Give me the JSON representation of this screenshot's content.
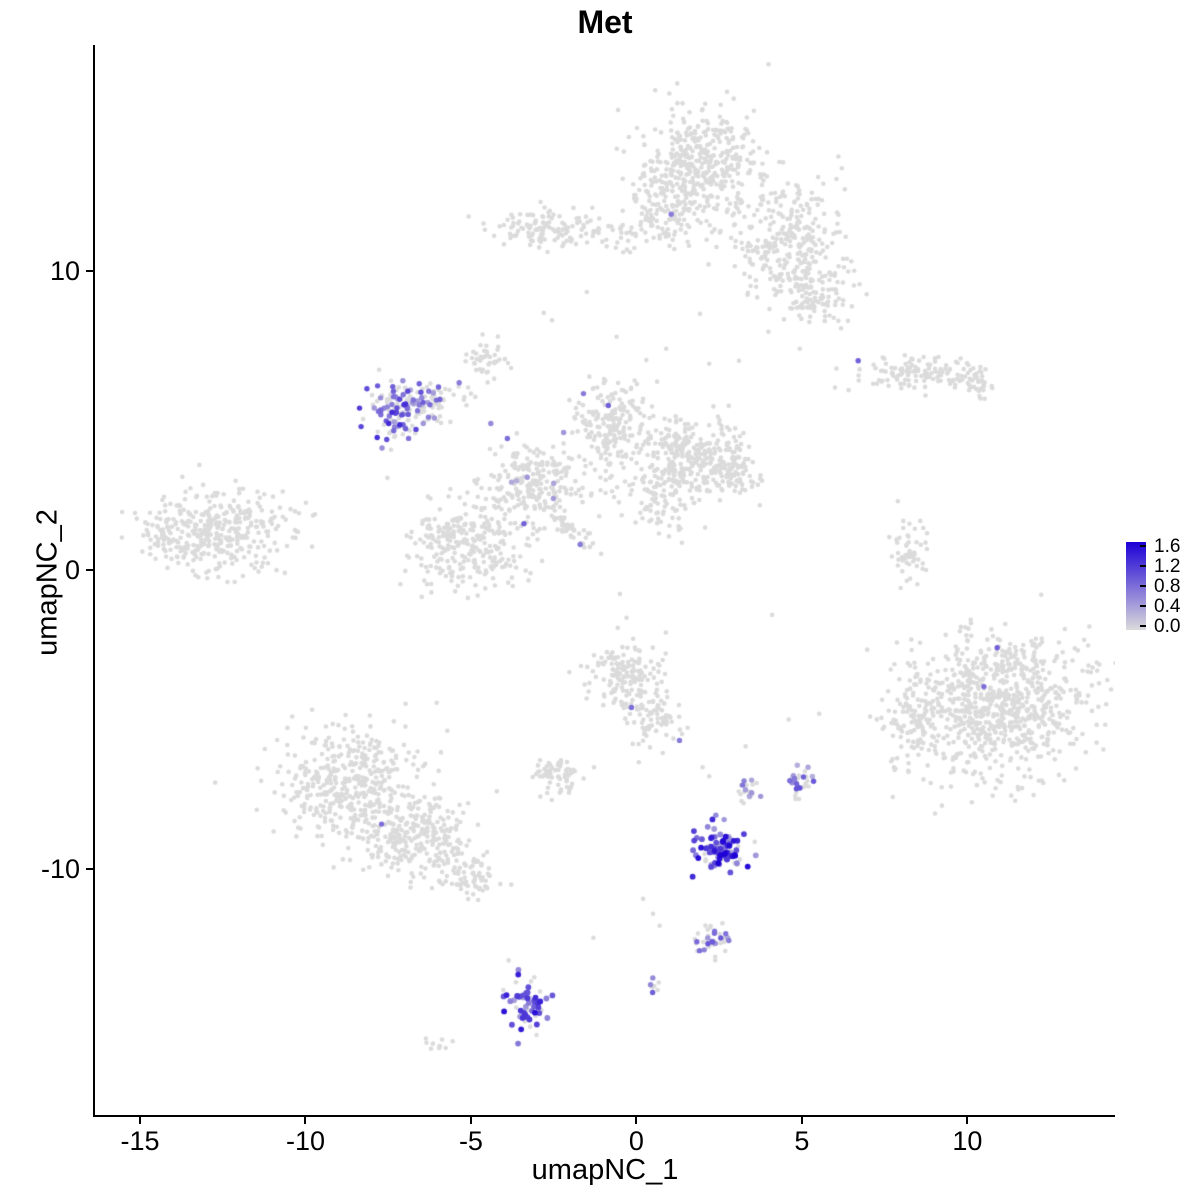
{
  "chart_data": {
    "type": "scatter",
    "title": "Met",
    "xlabel": "umapNC_1",
    "ylabel": "umapNC_2",
    "xlim": [
      -16.36,
      14.46
    ],
    "ylim": [
      -18.23,
      17.56
    ],
    "x_ticks": {
      "values": [
        -15,
        -10,
        -5,
        0,
        5,
        10
      ],
      "labels": [
        "-15",
        "-10",
        "-5",
        "0",
        "5",
        "10"
      ]
    },
    "y_ticks": {
      "values": [
        10,
        0,
        -10
      ],
      "labels": [
        "10",
        "0",
        "-10"
      ]
    },
    "grid": false,
    "background": "#FFFFFF",
    "point_radius": 2.3,
    "expressed_point_radius": 2.7,
    "seed": 20240601,
    "colors": {
      "low": "#DBDBDB",
      "high": "#1C00D6",
      "axis": "#000000",
      "text": "#000000"
    },
    "legend": {
      "position": "right",
      "vmax": 1.6,
      "tick_values": [
        1.6,
        1.2,
        0.8,
        0.4,
        0.0
      ],
      "tick_labels": [
        "1.6",
        "1.2",
        "0.8",
        "0.4",
        "0.0"
      ]
    },
    "clusters": [
      {
        "name": "top-main",
        "cx": 2.0,
        "cy": 13.5,
        "sx": 0.95,
        "sy": 1.0,
        "n": 420
      },
      {
        "name": "top-right",
        "cx": 4.6,
        "cy": 11.0,
        "sx": 0.85,
        "sy": 1.1,
        "n": 300
      },
      {
        "name": "top-right-low",
        "cx": 5.5,
        "cy": 9.2,
        "sx": 0.55,
        "sy": 0.5,
        "n": 90
      },
      {
        "name": "top-left-arm",
        "cx": -1.6,
        "cy": 11.3,
        "sx": 1.35,
        "sy": 0.28,
        "n": 120
      },
      {
        "name": "top-left-blob",
        "cx": -3.0,
        "cy": 11.6,
        "sx": 0.45,
        "sy": 0.3,
        "n": 50
      },
      {
        "name": "top-mid-bridge",
        "cx": 0.9,
        "cy": 12.0,
        "sx": 0.5,
        "sy": 0.7,
        "n": 80
      },
      {
        "name": "small-upper-left",
        "cx": -4.5,
        "cy": 7.1,
        "sx": 0.33,
        "sy": 0.26,
        "n": 40
      },
      {
        "name": "met-left",
        "cx": -7.3,
        "cy": 5.3,
        "sx": 0.5,
        "sy": 0.55,
        "n": 115,
        "expr_frac": 0.55,
        "vmin": 0.4,
        "vmax": 1.3
      },
      {
        "name": "met-left-east",
        "cx": -6.2,
        "cy": 5.7,
        "sx": 0.5,
        "sy": 0.35,
        "n": 80,
        "expr_frac": 0.18,
        "vmin": 0.3,
        "vmax": 0.9
      },
      {
        "name": "central-n1",
        "cx": -0.7,
        "cy": 4.9,
        "sx": 0.55,
        "sy": 0.75,
        "n": 190
      },
      {
        "name": "central-n2",
        "cx": 1.6,
        "cy": 3.9,
        "sx": 0.8,
        "sy": 0.6,
        "n": 260
      },
      {
        "name": "central-n2b",
        "cx": 2.7,
        "cy": 3.3,
        "sx": 0.45,
        "sy": 0.45,
        "n": 100
      },
      {
        "name": "central-w",
        "cx": -3.1,
        "cy": 2.9,
        "sx": 0.8,
        "sy": 0.7,
        "n": 240,
        "expr_frac": 0.02,
        "vmin": 0.3,
        "vmax": 0.7
      },
      {
        "name": "central-sw",
        "cx": -5.1,
        "cy": 0.9,
        "sx": 0.8,
        "sy": 0.75,
        "n": 290
      },
      {
        "name": "central-mid",
        "cx": 0.6,
        "cy": 2.4,
        "sx": 0.55,
        "sy": 0.55,
        "n": 90
      },
      {
        "name": "central-streak",
        "cx": -1.9,
        "cy": 1.3,
        "sx": 0.6,
        "sy": 0.13,
        "rot": -0.8,
        "n": 50
      },
      {
        "name": "left",
        "cx": -12.5,
        "cy": 1.3,
        "sx": 1.05,
        "sy": 0.75,
        "n": 330
      },
      {
        "name": "left-tip",
        "cx": -14.1,
        "cy": 1.1,
        "sx": 0.45,
        "sy": 0.45,
        "n": 60
      },
      {
        "name": "right-strip",
        "cx": 8.6,
        "cy": 6.6,
        "sx": 0.95,
        "sy": 0.3,
        "n": 130
      },
      {
        "name": "right-strip-e",
        "cx": 10.2,
        "cy": 6.1,
        "sx": 0.35,
        "sy": 0.18,
        "n": 25
      },
      {
        "name": "right-small",
        "cx": 8.2,
        "cy": 0.6,
        "sx": 0.3,
        "sy": 0.55,
        "n": 55
      },
      {
        "name": "right-big",
        "cx": 10.9,
        "cy": -4.4,
        "sx": 1.35,
        "sy": 1.2,
        "n": 820
      },
      {
        "name": "right-big-arm",
        "cx": 8.3,
        "cy": -5.0,
        "sx": 0.45,
        "sy": 0.9,
        "n": 90
      },
      {
        "name": "mid-south",
        "cx": -0.3,
        "cy": -3.6,
        "sx": 0.6,
        "sy": 0.55,
        "n": 150
      },
      {
        "name": "mid-south-arm",
        "cx": 0.6,
        "cy": -4.9,
        "sx": 0.5,
        "sy": 0.5,
        "n": 80
      },
      {
        "name": "small-mid-sw",
        "cx": -2.4,
        "cy": -6.9,
        "sx": 0.4,
        "sy": 0.3,
        "n": 65
      },
      {
        "name": "bottomleft-main",
        "cx": -8.7,
        "cy": -7.1,
        "sx": 1.1,
        "sy": 0.95,
        "n": 430
      },
      {
        "name": "bottomleft-s",
        "cx": -6.6,
        "cy": -9.0,
        "sx": 0.9,
        "sy": 0.75,
        "n": 270
      },
      {
        "name": "bottomleft-tail",
        "cx": -5.0,
        "cy": -10.3,
        "sx": 0.45,
        "sy": 0.35,
        "n": 60
      },
      {
        "name": "met-bottom",
        "cx": 2.5,
        "cy": -9.4,
        "sx": 0.42,
        "sy": 0.38,
        "n": 95,
        "expr_frac": 0.78,
        "vmin": 0.4,
        "vmax": 1.6,
        "r": 2.9
      },
      {
        "name": "small-se1",
        "cx": 3.4,
        "cy": -7.4,
        "sx": 0.18,
        "sy": 0.24,
        "n": 22,
        "expr_frac": 0.35,
        "vmin": 0.3,
        "vmax": 0.9
      },
      {
        "name": "small-se2",
        "cx": 5.0,
        "cy": -7.1,
        "sx": 0.2,
        "sy": 0.28,
        "n": 28,
        "expr_frac": 0.45,
        "vmin": 0.3,
        "vmax": 1.1
      },
      {
        "name": "small-s",
        "cx": 2.3,
        "cy": -12.4,
        "sx": 0.3,
        "sy": 0.26,
        "n": 40,
        "expr_frac": 0.35,
        "vmin": 0.3,
        "vmax": 1.0
      },
      {
        "name": "met-deep-south",
        "cx": -3.3,
        "cy": -14.4,
        "sx": 0.28,
        "sy": 0.5,
        "n": 68,
        "expr_frac": 0.7,
        "vmin": 0.4,
        "vmax": 1.5,
        "r": 2.9
      },
      {
        "name": "tiny-s",
        "cx": 0.55,
        "cy": -13.9,
        "sx": 0.16,
        "sy": 0.16,
        "n": 7,
        "expr_frac": 0.6,
        "vmin": 0.4,
        "vmax": 1.0
      },
      {
        "name": "tiny-sw",
        "cx": -6.0,
        "cy": -15.9,
        "sx": 0.28,
        "sy": 0.12,
        "n": 10
      }
    ],
    "extra_points": {
      "gray": [
        [
          -2.8,
          8.6
        ],
        [
          -2.55,
          8.35
        ],
        [
          -1.5,
          9.3
        ],
        [
          0.9,
          7.4
        ],
        [
          6.0,
          6.1
        ],
        [
          7.9,
          2.3
        ],
        [
          4.1,
          -1.5
        ],
        [
          -0.5,
          -0.8
        ],
        [
          -0.3,
          -1.6
        ],
        [
          -0.1,
          -2.3
        ],
        [
          2.0,
          -6.6
        ],
        [
          2.2,
          -6.9
        ],
        [
          0.2,
          -11.0
        ],
        [
          0.5,
          -11.5
        ],
        [
          0.7,
          -11.9
        ],
        [
          -1.3,
          -12.3
        ],
        [
          3.3,
          -5.9
        ],
        [
          4.6,
          -5.0
        ],
        [
          -10.4,
          -4.9
        ],
        [
          -4.3,
          6.4
        ],
        [
          -5.0,
          5.9
        ],
        [
          2.2,
          6.9
        ],
        [
          3.1,
          7.0
        ],
        [
          -0.6,
          7.8
        ]
      ],
      "expressed": [
        [
          1.05,
          11.9,
          0.7
        ],
        [
          6.7,
          7.0,
          0.9
        ],
        [
          -1.6,
          5.9,
          0.7
        ],
        [
          -0.85,
          5.5,
          0.9
        ],
        [
          -3.9,
          4.4,
          0.8
        ],
        [
          -3.3,
          3.1,
          0.5
        ],
        [
          -3.4,
          1.55,
          0.9
        ],
        [
          -1.7,
          0.85,
          0.7
        ],
        [
          -4.4,
          4.9,
          0.6
        ],
        [
          10.9,
          -2.6,
          0.9
        ],
        [
          10.5,
          -3.9,
          0.8
        ],
        [
          -0.15,
          -4.6,
          0.8
        ],
        [
          1.3,
          -5.7,
          0.7
        ],
        [
          -7.7,
          -8.5,
          0.8
        ],
        [
          2.4,
          -8.2,
          0.6
        ],
        [
          2.65,
          -8.35,
          0.5
        ],
        [
          -2.2,
          4.6,
          0.5
        ],
        [
          -2.5,
          2.9,
          0.4
        ]
      ]
    }
  }
}
